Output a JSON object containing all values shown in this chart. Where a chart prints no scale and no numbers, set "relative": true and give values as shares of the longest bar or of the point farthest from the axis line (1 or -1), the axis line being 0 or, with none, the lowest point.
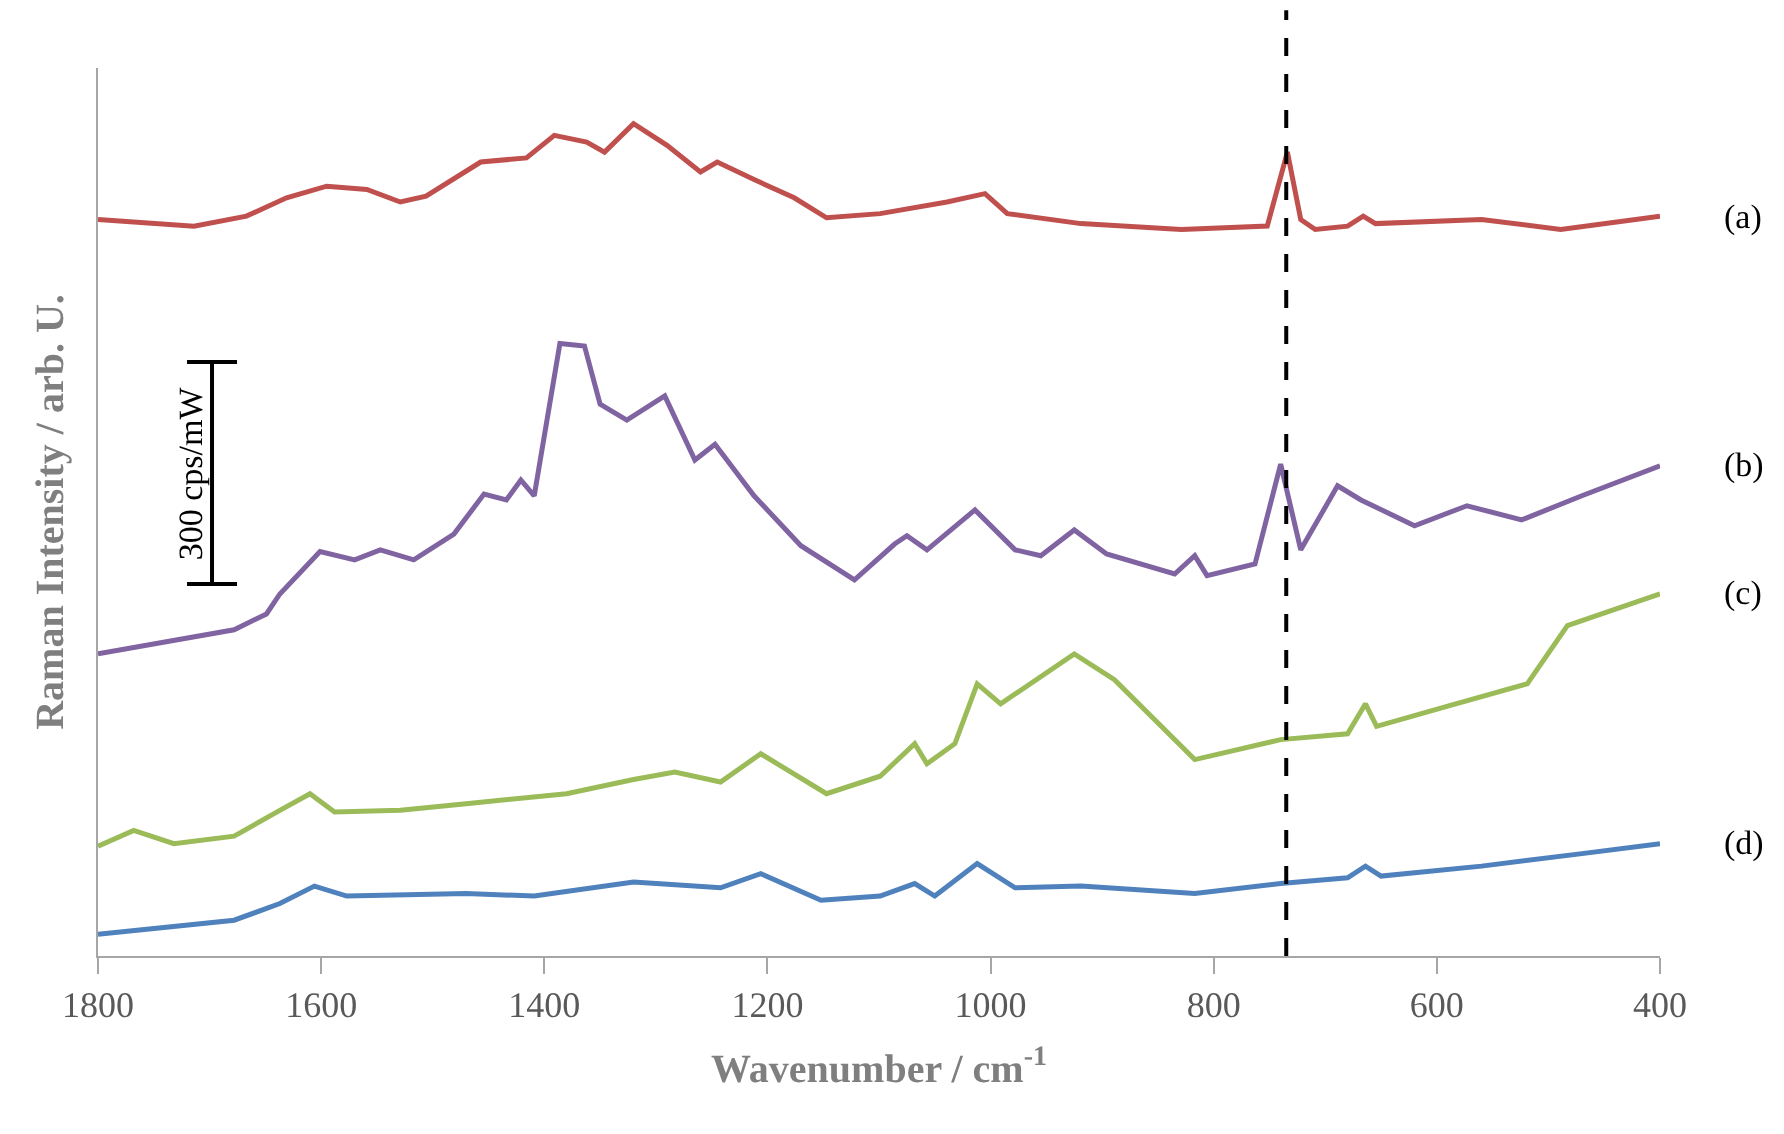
{
  "chart_data": {
    "type": "line",
    "relative": true,
    "xlabel": "Wavenumber / cm$^{-1}$",
    "ylabel": "Raman Intensity / arb. U.",
    "xlim": [
      1800,
      400
    ],
    "xticks": [
      1800,
      1600,
      1400,
      1200,
      1000,
      800,
      600,
      400
    ],
    "marker": "none",
    "line_style": "solid",
    "annotations": [
      "300 cps/mW"
    ],
    "ref_lines": [
      {
        "axis": "x",
        "value": 735,
        "label": null,
        "color": "#000000",
        "line_style": "dashed"
      }
    ],
    "series": [
      {
        "name": "(a)",
        "color": "#c0504d",
        "x": [
          1800,
          1714,
          1667,
          1631,
          1595,
          1559,
          1529,
          1506,
          1457,
          1416,
          1391,
          1362,
          1346,
          1320,
          1290,
          1260,
          1245,
          1212,
          1176,
          1147,
          1099,
          1039,
          1005,
          985,
          919,
          829,
          752,
          734,
          722,
          709,
          680,
          666,
          655,
          560,
          489,
          400
        ],
        "values": [
          0.885,
          0.877,
          0.889,
          0.911,
          0.925,
          0.921,
          0.906,
          0.913,
          0.954,
          0.959,
          0.986,
          0.978,
          0.966,
          1.0,
          0.974,
          0.942,
          0.954,
          0.933,
          0.911,
          0.887,
          0.892,
          0.906,
          0.916,
          0.892,
          0.88,
          0.873,
          0.877,
          0.966,
          0.885,
          0.873,
          0.877,
          0.889,
          0.88,
          0.885,
          0.873,
          0.889
        ]
      },
      {
        "name": "(b)",
        "color": "#8064a2",
        "x": [
          1800,
          1678,
          1649,
          1637,
          1601,
          1570,
          1547,
          1517,
          1481,
          1454,
          1434,
          1421,
          1409,
          1386,
          1364,
          1350,
          1326,
          1292,
          1265,
          1247,
          1212,
          1170,
          1122,
          1086,
          1075,
          1057,
          1014,
          978,
          955,
          925,
          896,
          835,
          817,
          806,
          763,
          740,
          722,
          689,
          668,
          620,
          573,
          524,
          470,
          400
        ],
        "values": [
          0.363,
          0.392,
          0.411,
          0.435,
          0.486,
          0.476,
          0.488,
          0.476,
          0.507,
          0.555,
          0.548,
          0.572,
          0.553,
          0.736,
          0.733,
          0.663,
          0.644,
          0.673,
          0.596,
          0.615,
          0.553,
          0.493,
          0.452,
          0.495,
          0.505,
          0.488,
          0.536,
          0.488,
          0.481,
          0.512,
          0.483,
          0.459,
          0.481,
          0.457,
          0.471,
          0.591,
          0.488,
          0.565,
          0.548,
          0.517,
          0.541,
          0.524,
          0.553,
          0.589
        ]
      },
      {
        "name": "(c)",
        "color": "#9bbb59",
        "x": [
          1800,
          1768,
          1732,
          1678,
          1637,
          1610,
          1588,
          1529,
          1470,
          1380,
          1320,
          1283,
          1242,
          1206,
          1147,
          1099,
          1068,
          1057,
          1032,
          1012,
          991,
          925,
          889,
          817,
          740,
          680,
          664,
          654,
          591,
          519,
          483,
          400
        ],
        "values": [
          0.132,
          0.151,
          0.135,
          0.144,
          0.175,
          0.195,
          0.173,
          0.175,
          0.183,
          0.195,
          0.212,
          0.221,
          0.209,
          0.243,
          0.195,
          0.216,
          0.255,
          0.231,
          0.255,
          0.327,
          0.303,
          0.363,
          0.332,
          0.236,
          0.26,
          0.267,
          0.303,
          0.276,
          0.3,
          0.327,
          0.397,
          0.435
        ]
      },
      {
        "name": "(d)",
        "color": "#4f81bd",
        "x": [
          1800,
          1678,
          1637,
          1606,
          1577,
          1470,
          1409,
          1320,
          1242,
          1206,
          1152,
          1099,
          1068,
          1050,
          1012,
          978,
          919,
          817,
          740,
          680,
          664,
          650,
          560,
          470,
          400
        ],
        "values": [
          0.026,
          0.043,
          0.063,
          0.084,
          0.072,
          0.075,
          0.072,
          0.089,
          0.082,
          0.099,
          0.067,
          0.072,
          0.087,
          0.072,
          0.111,
          0.082,
          0.084,
          0.075,
          0.087,
          0.094,
          0.108,
          0.096,
          0.108,
          0.123,
          0.135
        ]
      }
    ]
  }
}
